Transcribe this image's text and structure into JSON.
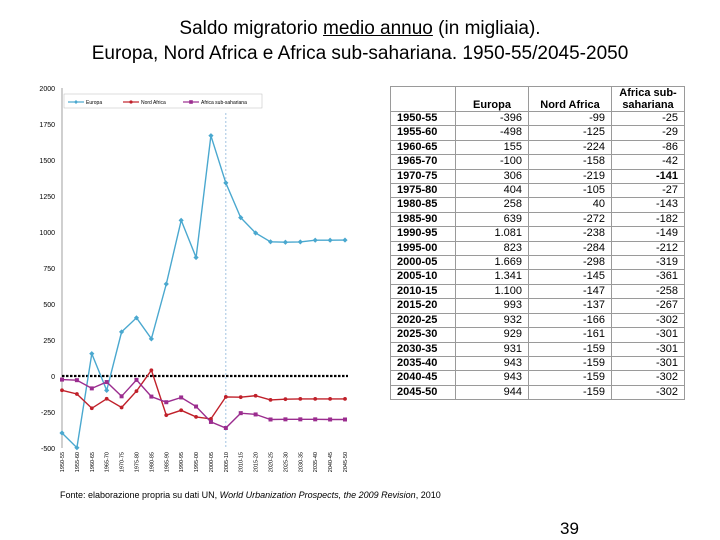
{
  "title": {
    "pre": "Saldo migratorio ",
    "underlined": "medio annuo",
    "post": " (in migliaia).",
    "line2": "Europa, Nord Africa e Africa sub-sahariana. 1950-55/2045-2050"
  },
  "chart_data": {
    "type": "line",
    "categories": [
      "1950-55",
      "1955-60",
      "1960-65",
      "1965-70",
      "1970-75",
      "1975-80",
      "1980-85",
      "1985-90",
      "1990-95",
      "1995-00",
      "2000-05",
      "2005-10",
      "2010-15",
      "2015-20",
      "2020-25",
      "2025-30",
      "2030-35",
      "2035-40",
      "2040-45",
      "2045-50"
    ],
    "series": [
      {
        "name": "Europa",
        "color": "#4aa8cf",
        "marker": "diamond",
        "values": [
          -396,
          -498,
          155,
          -100,
          306,
          404,
          258,
          639,
          1081,
          823,
          1669,
          1341,
          1100,
          993,
          932,
          929,
          931,
          943,
          943,
          944
        ]
      },
      {
        "name": "Nord Africa",
        "color": "#c0202a",
        "marker": "circle",
        "values": [
          -99,
          -125,
          -224,
          -158,
          -219,
          -105,
          40,
          -272,
          -238,
          -284,
          -298,
          -145,
          -147,
          -137,
          -166,
          -161,
          -159,
          -159,
          -159,
          -159
        ]
      },
      {
        "name": "Africa sub-sahariana",
        "color": "#9b2d8f",
        "marker": "square",
        "values": [
          -25,
          -29,
          -86,
          -42,
          -141,
          -27,
          -143,
          -182,
          -149,
          -212,
          -319,
          -361,
          -258,
          -267,
          -302,
          -301,
          -301,
          -301,
          -302,
          -302
        ]
      }
    ],
    "yticks": [
      2000,
      1750,
      1500,
      1250,
      1000,
      750,
      500,
      250,
      0,
      -250,
      -500
    ],
    "ylim": [
      -500,
      2000
    ],
    "vline_after": "2005-10",
    "zero_line": "dashed",
    "legend_position": "top"
  },
  "table": {
    "headers": [
      "Europa",
      "Nord Africa",
      "Africa sub-\nsahariana"
    ],
    "rows": [
      {
        "period": "1950-55",
        "europa": "-396",
        "nord_africa": "-99",
        "africa_ss": "-25",
        "bold": false
      },
      {
        "period": "1955-60",
        "europa": "-498",
        "nord_africa": "-125",
        "africa_ss": "-29",
        "bold": false
      },
      {
        "period": "1960-65",
        "europa": "155",
        "nord_africa": "-224",
        "africa_ss": "-86",
        "bold": false
      },
      {
        "period": "1965-70",
        "europa": "-100",
        "nord_africa": "-158",
        "africa_ss": "-42",
        "bold": false
      },
      {
        "period": "1970-75",
        "europa": "306",
        "nord_africa": "-219",
        "africa_ss": "-141",
        "bold": true
      },
      {
        "period": "1975-80",
        "europa": "404",
        "nord_africa": "-105",
        "africa_ss": "-27",
        "bold": false
      },
      {
        "period": "1980-85",
        "europa": "258",
        "nord_africa": "40",
        "africa_ss": "-143",
        "bold": false
      },
      {
        "period": "1985-90",
        "europa": "639",
        "nord_africa": "-272",
        "africa_ss": "-182",
        "bold": false
      },
      {
        "period": "1990-95",
        "europa": "1.081",
        "nord_africa": "-238",
        "africa_ss": "-149",
        "bold": false
      },
      {
        "period": "1995-00",
        "europa": "823",
        "nord_africa": "-284",
        "africa_ss": "-212",
        "bold": false
      },
      {
        "period": "2000-05",
        "europa": "1.669",
        "nord_africa": "-298",
        "africa_ss": "-319",
        "bold": false
      },
      {
        "period": "2005-10",
        "europa": "1.341",
        "nord_africa": "-145",
        "africa_ss": "-361",
        "bold": false
      },
      {
        "period": "2010-15",
        "europa": "1.100",
        "nord_africa": "-147",
        "africa_ss": "-258",
        "bold": false
      },
      {
        "period": "2015-20",
        "europa": "993",
        "nord_africa": "-137",
        "africa_ss": "-267",
        "bold": false
      },
      {
        "period": "2020-25",
        "europa": "932",
        "nord_africa": "-166",
        "africa_ss": "-302",
        "bold": false
      },
      {
        "period": "2025-30",
        "europa": "929",
        "nord_africa": "-161",
        "africa_ss": "-301",
        "bold": false
      },
      {
        "period": "2030-35",
        "europa": "931",
        "nord_africa": "-159",
        "africa_ss": "-301",
        "bold": false
      },
      {
        "period": "2035-40",
        "europa": "943",
        "nord_africa": "-159",
        "africa_ss": "-301",
        "bold": false
      },
      {
        "period": "2040-45",
        "europa": "943",
        "nord_africa": "-159",
        "africa_ss": "-302",
        "bold": false
      },
      {
        "period": "2045-50",
        "europa": "944",
        "nord_africa": "-159",
        "africa_ss": "-302",
        "bold": false
      }
    ]
  },
  "source": {
    "pre": "Fonte: elaborazione propria su dati UN, ",
    "italic": "World Urbanization Prospects, the 2009 Revision",
    "post": ", 2010"
  },
  "page_number": "39"
}
